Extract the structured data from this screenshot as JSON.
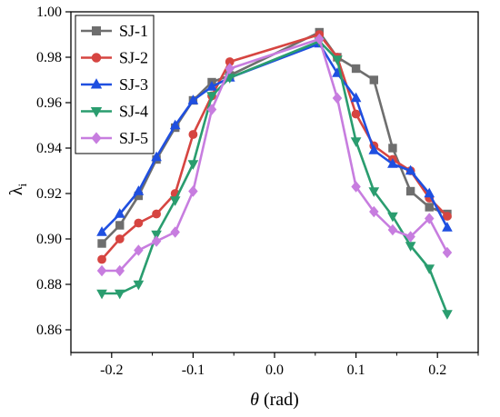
{
  "chart_data": {
    "type": "line",
    "xlabel": "θ (rad)",
    "ylabel": "λi",
    "xlim": [
      -0.25,
      0.25
    ],
    "ylim": [
      0.85,
      1.0
    ],
    "x_ticks": [
      -0.2,
      -0.1,
      0.0,
      0.1,
      0.2
    ],
    "x_tick_labels": [
      "-0.2",
      "-0.1",
      "0.0",
      "0.1",
      "0.2"
    ],
    "y_ticks": [
      0.86,
      0.88,
      0.9,
      0.92,
      0.94,
      0.96,
      0.98,
      1.0
    ],
    "y_tick_labels": [
      "0.86",
      "0.88",
      "0.90",
      "0.92",
      "0.94",
      "0.96",
      "0.98",
      "1.00"
    ],
    "grid": false,
    "legend_position": "top-left",
    "series": [
      {
        "name": "SJ-1",
        "color": "#6e6e6e",
        "marker": "square",
        "points": [
          [
            -0.212,
            0.898
          ],
          [
            -0.19,
            0.906
          ],
          [
            -0.167,
            0.919
          ],
          [
            -0.145,
            0.935
          ],
          [
            -0.122,
            0.949
          ],
          [
            -0.1,
            0.961
          ],
          [
            -0.077,
            0.969
          ],
          [
            -0.055,
            0.972
          ],
          [
            0.055,
            0.991
          ],
          [
            0.077,
            0.98
          ],
          [
            0.1,
            0.975
          ],
          [
            0.122,
            0.97
          ],
          [
            0.145,
            0.94
          ],
          [
            0.167,
            0.921
          ],
          [
            0.19,
            0.914
          ],
          [
            0.212,
            0.911
          ]
        ]
      },
      {
        "name": "SJ-2",
        "color": "#d64541",
        "marker": "circle",
        "points": [
          [
            -0.212,
            0.891
          ],
          [
            -0.19,
            0.9
          ],
          [
            -0.167,
            0.907
          ],
          [
            -0.145,
            0.911
          ],
          [
            -0.122,
            0.92
          ],
          [
            -0.1,
            0.946
          ],
          [
            -0.077,
            0.963
          ],
          [
            -0.055,
            0.978
          ],
          [
            0.055,
            0.99
          ],
          [
            0.077,
            0.98
          ],
          [
            0.1,
            0.955
          ],
          [
            0.122,
            0.941
          ],
          [
            0.145,
            0.935
          ],
          [
            0.167,
            0.93
          ],
          [
            0.19,
            0.918
          ],
          [
            0.212,
            0.91
          ]
        ]
      },
      {
        "name": "SJ-3",
        "color": "#1f4fe0",
        "marker": "triangle",
        "points": [
          [
            -0.212,
            0.903
          ],
          [
            -0.19,
            0.911
          ],
          [
            -0.167,
            0.921
          ],
          [
            -0.145,
            0.936
          ],
          [
            -0.122,
            0.95
          ],
          [
            -0.1,
            0.961
          ],
          [
            -0.077,
            0.967
          ],
          [
            -0.055,
            0.971
          ],
          [
            0.055,
            0.986
          ],
          [
            0.077,
            0.973
          ],
          [
            0.1,
            0.962
          ],
          [
            0.122,
            0.939
          ],
          [
            0.145,
            0.933
          ],
          [
            0.167,
            0.93
          ],
          [
            0.19,
            0.92
          ],
          [
            0.212,
            0.905
          ]
        ]
      },
      {
        "name": "SJ-4",
        "color": "#2a9d6f",
        "marker": "triangle-down",
        "points": [
          [
            -0.212,
            0.876
          ],
          [
            -0.19,
            0.876
          ],
          [
            -0.167,
            0.88
          ],
          [
            -0.145,
            0.902
          ],
          [
            -0.122,
            0.917
          ],
          [
            -0.1,
            0.933
          ],
          [
            -0.077,
            0.963
          ],
          [
            -0.055,
            0.971
          ],
          [
            0.055,
            0.987
          ],
          [
            0.077,
            0.979
          ],
          [
            0.1,
            0.943
          ],
          [
            0.122,
            0.921
          ],
          [
            0.145,
            0.91
          ],
          [
            0.167,
            0.897
          ],
          [
            0.19,
            0.887
          ],
          [
            0.212,
            0.867
          ]
        ]
      },
      {
        "name": "SJ-5",
        "color": "#c77ddf",
        "marker": "diamond",
        "points": [
          [
            -0.212,
            0.886
          ],
          [
            -0.19,
            0.886
          ],
          [
            -0.167,
            0.895
          ],
          [
            -0.145,
            0.899
          ],
          [
            -0.122,
            0.903
          ],
          [
            -0.1,
            0.921
          ],
          [
            -0.077,
            0.957
          ],
          [
            -0.055,
            0.975
          ],
          [
            0.055,
            0.988
          ],
          [
            0.077,
            0.962
          ],
          [
            0.1,
            0.923
          ],
          [
            0.122,
            0.912
          ],
          [
            0.145,
            0.904
          ],
          [
            0.167,
            0.901
          ],
          [
            0.19,
            0.909
          ],
          [
            0.212,
            0.894
          ]
        ]
      }
    ]
  }
}
